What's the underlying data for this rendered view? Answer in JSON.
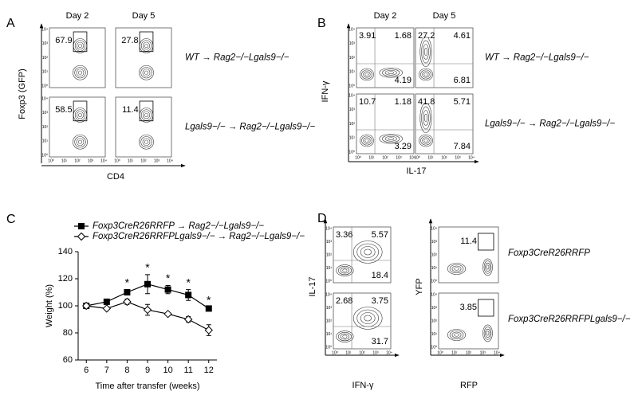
{
  "panels": {
    "A": {
      "label": "A",
      "columns": [
        "Day 2",
        "Day 5"
      ],
      "rows": [
        "WT → Rag2−/−Lgals9−/−",
        "Lgals9−/− → Rag2−/−Lgals9−/−"
      ],
      "y_label": "Foxp3 (GFP)",
      "x_label": "CD4",
      "gates": [
        [
          "67.9",
          "27.8"
        ],
        [
          "58.5",
          "11.4"
        ]
      ]
    },
    "B": {
      "label": "B",
      "columns": [
        "Day 2",
        "Day 5"
      ],
      "rows": [
        "WT → Rag2−/−Lgals9−/−",
        "Lgals9−/− → Rag2−/−Lgals9−/−"
      ],
      "y_label": "IFN-γ",
      "x_label": "IL-17",
      "quadrants": [
        [
          [
            "3.91",
            "1.68",
            "4.19"
          ],
          [
            "27.2",
            "4.61",
            "6.81"
          ]
        ],
        [
          [
            "10.7",
            "1.18",
            "3.29"
          ],
          [
            "41.8",
            "5.71",
            "7.84"
          ]
        ]
      ]
    },
    "D": {
      "label": "D",
      "left": {
        "y_label": "IL-17",
        "x_label": "IFN-γ",
        "quadrants": [
          [
            "3.36",
            "5.57",
            "18.4"
          ],
          [
            "2.68",
            "3.75",
            "31.7"
          ]
        ]
      },
      "right": {
        "y_label": "YFP",
        "x_label": "RFP",
        "gates": [
          "11.4",
          "3.85"
        ],
        "rows": [
          "Foxp3CreR26RRFP",
          "Foxp3CreR26RRFPLgals9−/−"
        ]
      }
    }
  },
  "axis_ticks": [
    "10⁰",
    "10¹",
    "10²",
    "10³",
    "10⁴"
  ],
  "chart_data": {
    "type": "line",
    "label": "C",
    "x_label": "Time after transfer (weeks)",
    "y_label": "Weight (%)",
    "x": [
      6,
      7,
      8,
      9,
      10,
      11,
      12
    ],
    "xlim": [
      5.6,
      12.4
    ],
    "xticks": [
      6,
      7,
      8,
      9,
      10,
      11,
      12
    ],
    "ylim": [
      60,
      140
    ],
    "yticks": [
      60,
      80,
      100,
      120,
      140
    ],
    "series": [
      {
        "name": "Foxp3CreR26RRFP → Rag2−/−Lgals9−/−",
        "color": "#000000",
        "marker": "square",
        "filled": true,
        "values": [
          100,
          103,
          110,
          116,
          112,
          108,
          98
        ],
        "errors": [
          0,
          1,
          2,
          7,
          3,
          4,
          1
        ]
      },
      {
        "name": "Foxp3CreR26RRFPLgals9−/− → Rag2−/−Lgals9−/−",
        "color": "#000000",
        "marker": "diamond",
        "filled": false,
        "values": [
          100,
          98,
          103,
          97,
          94,
          90,
          82
        ],
        "errors": [
          0,
          1,
          2,
          4,
          1,
          2,
          4
        ]
      }
    ],
    "significant_x": [
      8,
      9,
      10,
      11,
      12
    ],
    "significance_label": "*"
  }
}
